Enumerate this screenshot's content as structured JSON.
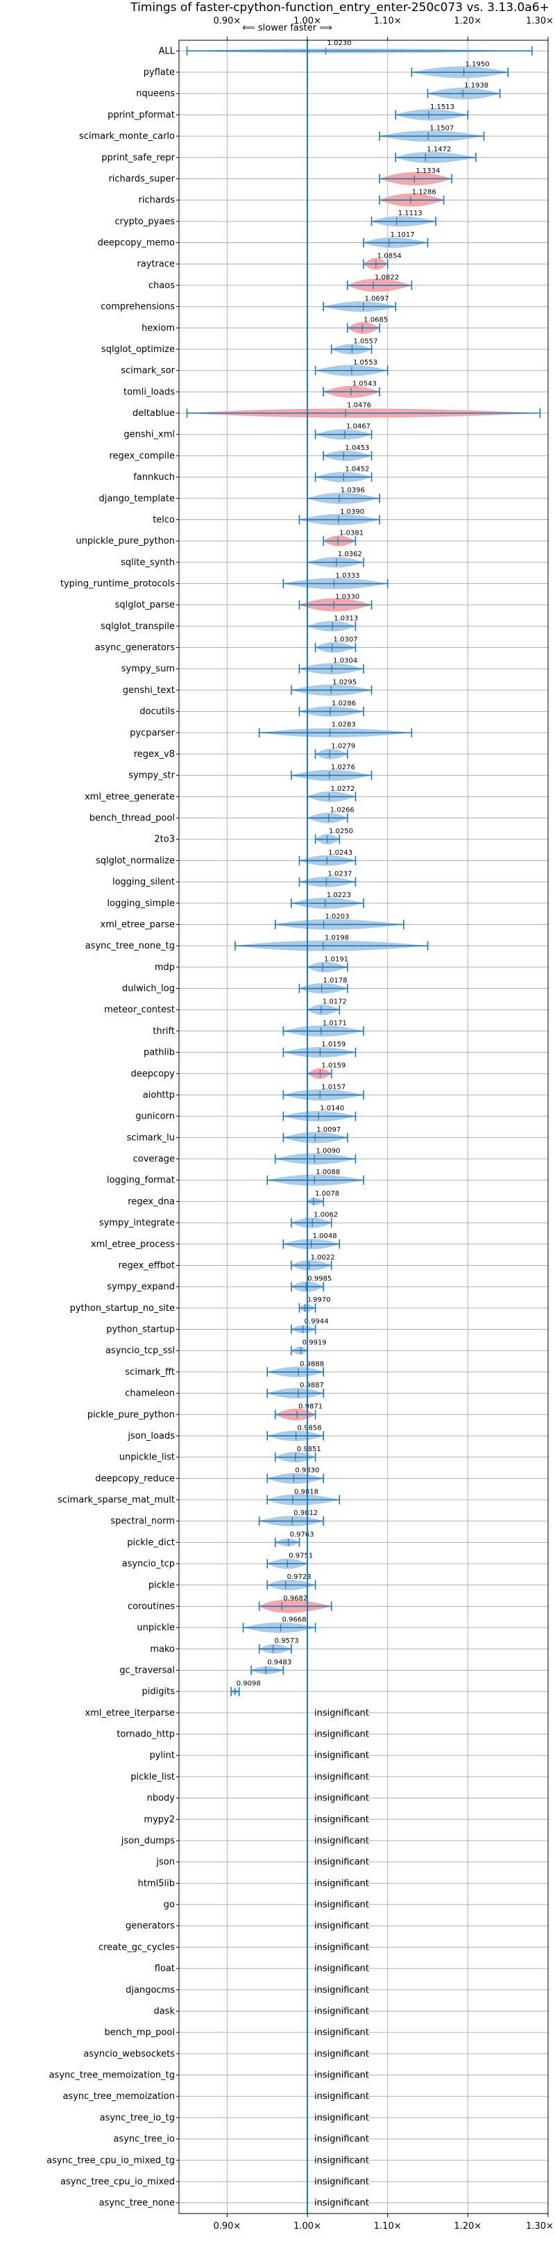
{
  "chart_data": {
    "type": "violin",
    "title": "Timings of faster-cpython-function_entry_enter-250c073 vs. 3.13.0a6+",
    "direction_label": "⟸ slower   faster ⟹",
    "xlim": [
      0.84,
      1.3
    ],
    "x_ticks": [
      0.9,
      1.0,
      1.1,
      1.2,
      1.3
    ],
    "x_tick_labels": [
      "0.90×",
      "1.00×",
      "1.10×",
      "1.20×",
      "1.30×"
    ],
    "grid": true,
    "insignificant_label": "insignificant",
    "colors": {
      "faster": "#1f77b4",
      "fill": "#a8c8e6",
      "slower_fill": "#f4a3a8",
      "line": "#1f77b4"
    },
    "benchmarks": [
      {
        "name": "ALL",
        "value": 1.023,
        "label": "1.0230",
        "lo": 0.85,
        "hi": 1.28,
        "width": 0.35,
        "slower": false
      },
      {
        "name": "pyflate",
        "value": 1.195,
        "label": "1.1950",
        "lo": 1.13,
        "hi": 1.25,
        "width": 0.9,
        "slower": false
      },
      {
        "name": "nqueens",
        "value": 1.1938,
        "label": "1.1938",
        "lo": 1.15,
        "hi": 1.24,
        "width": 0.9,
        "slower": false
      },
      {
        "name": "pprint_pformat",
        "value": 1.1513,
        "label": "1.1513",
        "lo": 1.11,
        "hi": 1.2,
        "width": 0.85,
        "slower": false
      },
      {
        "name": "scimark_monte_carlo",
        "value": 1.1507,
        "label": "1.1507",
        "lo": 1.09,
        "hi": 1.22,
        "width": 0.85,
        "slower": false
      },
      {
        "name": "pprint_safe_repr",
        "value": 1.1472,
        "label": "1.1472",
        "lo": 1.11,
        "hi": 1.21,
        "width": 0.85,
        "slower": false
      },
      {
        "name": "richards_super",
        "value": 1.1334,
        "label": "1.1334",
        "lo": 1.09,
        "hi": 1.18,
        "width": 1.0,
        "slower": true
      },
      {
        "name": "richards",
        "value": 1.1286,
        "label": "1.1286",
        "lo": 1.09,
        "hi": 1.17,
        "width": 1.0,
        "slower": true
      },
      {
        "name": "crypto_pyaes",
        "value": 1.1113,
        "label": "1.1113",
        "lo": 1.08,
        "hi": 1.16,
        "width": 0.8,
        "slower": false
      },
      {
        "name": "deepcopy_memo",
        "value": 1.1017,
        "label": "1.1017",
        "lo": 1.07,
        "hi": 1.15,
        "width": 0.8,
        "slower": false
      },
      {
        "name": "raytrace",
        "value": 1.0854,
        "label": "1.0854",
        "lo": 1.07,
        "hi": 1.1,
        "width": 0.9,
        "slower": true
      },
      {
        "name": "chaos",
        "value": 1.0822,
        "label": "1.0822",
        "lo": 1.05,
        "hi": 1.13,
        "width": 1.0,
        "slower": true
      },
      {
        "name": "comprehensions",
        "value": 1.0697,
        "label": "1.0697",
        "lo": 1.02,
        "hi": 1.11,
        "width": 0.8,
        "slower": false
      },
      {
        "name": "hexiom",
        "value": 1.0685,
        "label": "1.0685",
        "lo": 1.05,
        "hi": 1.09,
        "width": 0.9,
        "slower": true
      },
      {
        "name": "sqlglot_optimize",
        "value": 1.0557,
        "label": "1.0557",
        "lo": 1.03,
        "hi": 1.08,
        "width": 0.8,
        "slower": false
      },
      {
        "name": "scimark_sor",
        "value": 1.0553,
        "label": "1.0553",
        "lo": 1.01,
        "hi": 1.1,
        "width": 0.85,
        "slower": false
      },
      {
        "name": "tomli_loads",
        "value": 1.0543,
        "label": "1.0543",
        "lo": 1.02,
        "hi": 1.09,
        "width": 0.9,
        "slower": true
      },
      {
        "name": "deltablue",
        "value": 1.0476,
        "label": "1.0476",
        "lo": 0.85,
        "hi": 1.29,
        "width": 0.7,
        "slower": true
      },
      {
        "name": "genshi_xml",
        "value": 1.0467,
        "label": "1.0467",
        "lo": 1.01,
        "hi": 1.08,
        "width": 0.8,
        "slower": false
      },
      {
        "name": "regex_compile",
        "value": 1.0453,
        "label": "1.0453",
        "lo": 1.02,
        "hi": 1.08,
        "width": 0.8,
        "slower": false
      },
      {
        "name": "fannkuch",
        "value": 1.0452,
        "label": "1.0452",
        "lo": 1.01,
        "hi": 1.08,
        "width": 0.8,
        "slower": false
      },
      {
        "name": "django_template",
        "value": 1.0396,
        "label": "1.0396",
        "lo": 1.0,
        "hi": 1.09,
        "width": 0.85,
        "slower": false
      },
      {
        "name": "telco",
        "value": 1.039,
        "label": "1.0390",
        "lo": 0.99,
        "hi": 1.09,
        "width": 0.85,
        "slower": false
      },
      {
        "name": "unpickle_pure_python",
        "value": 1.0381,
        "label": "1.0381",
        "lo": 1.02,
        "hi": 1.06,
        "width": 0.8,
        "slower": true
      },
      {
        "name": "sqlite_synth",
        "value": 1.0362,
        "label": "1.0362",
        "lo": 1.0,
        "hi": 1.07,
        "width": 0.8,
        "slower": false
      },
      {
        "name": "typing_runtime_protocols",
        "value": 1.0333,
        "label": "1.0333",
        "lo": 0.97,
        "hi": 1.1,
        "width": 0.85,
        "slower": false
      },
      {
        "name": "sqlglot_parse",
        "value": 1.033,
        "label": "1.0330",
        "lo": 0.99,
        "hi": 1.08,
        "width": 1.0,
        "slower": true
      },
      {
        "name": "sqlglot_transpile",
        "value": 1.0313,
        "label": "1.0313",
        "lo": 1.0,
        "hi": 1.06,
        "width": 0.8,
        "slower": false
      },
      {
        "name": "async_generators",
        "value": 1.0307,
        "label": "1.0307",
        "lo": 1.01,
        "hi": 1.06,
        "width": 0.8,
        "slower": false
      },
      {
        "name": "sympy_sum",
        "value": 1.0304,
        "label": "1.0304",
        "lo": 0.99,
        "hi": 1.07,
        "width": 0.85,
        "slower": false
      },
      {
        "name": "genshi_text",
        "value": 1.0295,
        "label": "1.0295",
        "lo": 0.98,
        "hi": 1.08,
        "width": 0.85,
        "slower": false
      },
      {
        "name": "docutils",
        "value": 1.0286,
        "label": "1.0286",
        "lo": 0.99,
        "hi": 1.07,
        "width": 0.8,
        "slower": false
      },
      {
        "name": "pycparser",
        "value": 1.0283,
        "label": "1.0283",
        "lo": 0.94,
        "hi": 1.13,
        "width": 0.7,
        "slower": false
      },
      {
        "name": "regex_v8",
        "value": 1.0279,
        "label": "1.0279",
        "lo": 1.01,
        "hi": 1.05,
        "width": 0.8,
        "slower": false
      },
      {
        "name": "sympy_str",
        "value": 1.0276,
        "label": "1.0276",
        "lo": 0.98,
        "hi": 1.08,
        "width": 0.85,
        "slower": false
      },
      {
        "name": "xml_etree_generate",
        "value": 1.0272,
        "label": "1.0272",
        "lo": 1.0,
        "hi": 1.06,
        "width": 0.8,
        "slower": false
      },
      {
        "name": "bench_thread_pool",
        "value": 1.0266,
        "label": "1.0266",
        "lo": 1.0,
        "hi": 1.05,
        "width": 0.8,
        "slower": false
      },
      {
        "name": "2to3",
        "value": 1.025,
        "label": "1.0250",
        "lo": 1.01,
        "hi": 1.04,
        "width": 0.8,
        "slower": false
      },
      {
        "name": "sqlglot_normalize",
        "value": 1.0243,
        "label": "1.0243",
        "lo": 0.99,
        "hi": 1.06,
        "width": 0.8,
        "slower": false
      },
      {
        "name": "logging_silent",
        "value": 1.0237,
        "label": "1.0237",
        "lo": 0.99,
        "hi": 1.06,
        "width": 0.8,
        "slower": false
      },
      {
        "name": "logging_simple",
        "value": 1.0223,
        "label": "1.0223",
        "lo": 0.98,
        "hi": 1.07,
        "width": 0.85,
        "slower": false
      },
      {
        "name": "xml_etree_parse",
        "value": 1.0203,
        "label": "1.0203",
        "lo": 0.96,
        "hi": 1.12,
        "width": 0.8,
        "slower": false
      },
      {
        "name": "async_tree_none_tg",
        "value": 1.0198,
        "label": "1.0198",
        "lo": 0.91,
        "hi": 1.15,
        "width": 0.8,
        "slower": false
      },
      {
        "name": "mdp",
        "value": 1.0191,
        "label": "1.0191",
        "lo": 1.0,
        "hi": 1.05,
        "width": 0.8,
        "slower": false
      },
      {
        "name": "dulwich_log",
        "value": 1.0178,
        "label": "1.0178",
        "lo": 0.99,
        "hi": 1.05,
        "width": 0.8,
        "slower": false
      },
      {
        "name": "meteor_contest",
        "value": 1.0172,
        "label": "1.0172",
        "lo": 1.0,
        "hi": 1.04,
        "width": 0.8,
        "slower": false
      },
      {
        "name": "thrift",
        "value": 1.0171,
        "label": "1.0171",
        "lo": 0.97,
        "hi": 1.07,
        "width": 0.85,
        "slower": false
      },
      {
        "name": "pathlib",
        "value": 1.0159,
        "label": "1.0159",
        "lo": 0.97,
        "hi": 1.06,
        "width": 0.8,
        "slower": false
      },
      {
        "name": "deepcopy",
        "value": 1.0159,
        "label": "1.0159",
        "lo": 1.0,
        "hi": 1.03,
        "width": 0.8,
        "slower": true
      },
      {
        "name": "aiohttp",
        "value": 1.0157,
        "label": "1.0157",
        "lo": 0.97,
        "hi": 1.07,
        "width": 0.85,
        "slower": false
      },
      {
        "name": "gunicorn",
        "value": 1.014,
        "label": "1.0140",
        "lo": 0.97,
        "hi": 1.06,
        "width": 0.8,
        "slower": false
      },
      {
        "name": "scimark_lu",
        "value": 1.0097,
        "label": "1.0097",
        "lo": 0.97,
        "hi": 1.05,
        "width": 0.85,
        "slower": false
      },
      {
        "name": "coverage",
        "value": 1.009,
        "label": "1.0090",
        "lo": 0.96,
        "hi": 1.06,
        "width": 0.85,
        "slower": false
      },
      {
        "name": "logging_format",
        "value": 1.0088,
        "label": "1.0088",
        "lo": 0.95,
        "hi": 1.07,
        "width": 0.85,
        "slower": false
      },
      {
        "name": "regex_dna",
        "value": 1.0078,
        "label": "1.0078",
        "lo": 1.0,
        "hi": 1.02,
        "width": 0.6,
        "slower": false
      },
      {
        "name": "sympy_integrate",
        "value": 1.0062,
        "label": "1.0062",
        "lo": 0.98,
        "hi": 1.03,
        "width": 0.8,
        "slower": false
      },
      {
        "name": "xml_etree_process",
        "value": 1.0048,
        "label": "1.0048",
        "lo": 0.97,
        "hi": 1.04,
        "width": 0.8,
        "slower": false
      },
      {
        "name": "regex_effbot",
        "value": 1.0022,
        "label": "1.0022",
        "lo": 0.98,
        "hi": 1.03,
        "width": 0.8,
        "slower": false
      },
      {
        "name": "sympy_expand",
        "value": 0.9985,
        "label": "0.9985",
        "lo": 0.98,
        "hi": 1.02,
        "width": 0.8,
        "slower": false
      },
      {
        "name": "python_startup_no_site",
        "value": 0.997,
        "label": "0.9970",
        "lo": 0.99,
        "hi": 1.01,
        "width": 0.6,
        "slower": false
      },
      {
        "name": "python_startup",
        "value": 0.9944,
        "label": "0.9944",
        "lo": 0.98,
        "hi": 1.01,
        "width": 0.6,
        "slower": false
      },
      {
        "name": "asyncio_tcp_ssl",
        "value": 0.9919,
        "label": "0.9919",
        "lo": 0.98,
        "hi": 1.0,
        "width": 0.6,
        "slower": false
      },
      {
        "name": "scimark_fft",
        "value": 0.9888,
        "label": "0.9888",
        "lo": 0.95,
        "hi": 1.02,
        "width": 0.8,
        "slower": false
      },
      {
        "name": "chameleon",
        "value": 0.9887,
        "label": "0.9887",
        "lo": 0.95,
        "hi": 1.02,
        "width": 0.8,
        "slower": false
      },
      {
        "name": "pickle_pure_python",
        "value": 0.9871,
        "label": "0.9871",
        "lo": 0.96,
        "hi": 1.01,
        "width": 0.9,
        "slower": true
      },
      {
        "name": "json_loads",
        "value": 0.9858,
        "label": "0.9858",
        "lo": 0.95,
        "hi": 1.02,
        "width": 0.8,
        "slower": false
      },
      {
        "name": "unpickle_list",
        "value": 0.9851,
        "label": "0.9851",
        "lo": 0.96,
        "hi": 1.01,
        "width": 0.8,
        "slower": false
      },
      {
        "name": "deepcopy_reduce",
        "value": 0.983,
        "label": "0.9830",
        "lo": 0.95,
        "hi": 1.02,
        "width": 0.8,
        "slower": false
      },
      {
        "name": "scimark_sparse_mat_mult",
        "value": 0.9818,
        "label": "0.9818",
        "lo": 0.95,
        "hi": 1.04,
        "width": 0.85,
        "slower": false
      },
      {
        "name": "spectral_norm",
        "value": 0.9812,
        "label": "0.9812",
        "lo": 0.94,
        "hi": 1.02,
        "width": 0.8,
        "slower": false
      },
      {
        "name": "pickle_dict",
        "value": 0.9763,
        "label": "0.9763",
        "lo": 0.96,
        "hi": 0.99,
        "width": 0.6,
        "slower": false
      },
      {
        "name": "asyncio_tcp",
        "value": 0.9751,
        "label": "0.9751",
        "lo": 0.95,
        "hi": 1.0,
        "width": 0.8,
        "slower": false
      },
      {
        "name": "pickle",
        "value": 0.9728,
        "label": "0.9728",
        "lo": 0.95,
        "hi": 1.01,
        "width": 0.8,
        "slower": false
      },
      {
        "name": "coroutines",
        "value": 0.9682,
        "label": "0.9682",
        "lo": 0.94,
        "hi": 1.03,
        "width": 1.0,
        "slower": true
      },
      {
        "name": "unpickle",
        "value": 0.9668,
        "label": "0.9668",
        "lo": 0.92,
        "hi": 1.01,
        "width": 0.8,
        "slower": false
      },
      {
        "name": "mako",
        "value": 0.9573,
        "label": "0.9573",
        "lo": 0.94,
        "hi": 0.98,
        "width": 0.7,
        "slower": false
      },
      {
        "name": "gc_traversal",
        "value": 0.9483,
        "label": "0.9483",
        "lo": 0.93,
        "hi": 0.97,
        "width": 0.6,
        "slower": false
      },
      {
        "name": "pidigits",
        "value": 0.9098,
        "label": "0.9098",
        "lo": 0.905,
        "hi": 0.915,
        "width": 0.4,
        "slower": false
      },
      {
        "name": "xml_etree_iterparse",
        "insignificant": true
      },
      {
        "name": "tornado_http",
        "insignificant": true
      },
      {
        "name": "pylint",
        "insignificant": true
      },
      {
        "name": "pickle_list",
        "insignificant": true
      },
      {
        "name": "nbody",
        "insignificant": true
      },
      {
        "name": "mypy2",
        "insignificant": true
      },
      {
        "name": "json_dumps",
        "insignificant": true
      },
      {
        "name": "json",
        "insignificant": true
      },
      {
        "name": "html5lib",
        "insignificant": true
      },
      {
        "name": "go",
        "insignificant": true
      },
      {
        "name": "generators",
        "insignificant": true
      },
      {
        "name": "create_gc_cycles",
        "insignificant": true
      },
      {
        "name": "float",
        "insignificant": true
      },
      {
        "name": "djangocms",
        "insignificant": true
      },
      {
        "name": "dask",
        "insignificant": true
      },
      {
        "name": "bench_mp_pool",
        "insignificant": true
      },
      {
        "name": "asyncio_websockets",
        "insignificant": true
      },
      {
        "name": "async_tree_memoization_tg",
        "insignificant": true
      },
      {
        "name": "async_tree_memoization",
        "insignificant": true
      },
      {
        "name": "async_tree_io_tg",
        "insignificant": true
      },
      {
        "name": "async_tree_io",
        "insignificant": true
      },
      {
        "name": "async_tree_cpu_io_mixed_tg",
        "insignificant": true
      },
      {
        "name": "async_tree_cpu_io_mixed",
        "insignificant": true
      },
      {
        "name": "async_tree_none",
        "insignificant": true
      }
    ]
  }
}
